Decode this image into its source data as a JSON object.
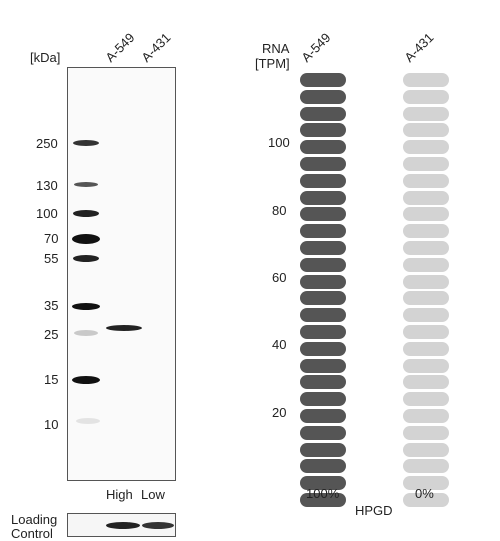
{
  "blot": {
    "unit_label": "[kDa]",
    "lane_headers": [
      "A-549",
      "A-431"
    ],
    "markers": [
      "250",
      "130",
      "100",
      "70",
      "55",
      "35",
      "25",
      "15",
      "10"
    ],
    "lane_levels": [
      "High",
      "Low"
    ],
    "loading_label_line1": "Loading",
    "loading_label_line2": "Control"
  },
  "rna": {
    "title_line1": "RNA",
    "title_line2": "[TPM]",
    "cell_lines": [
      "A-549",
      "A-431"
    ],
    "y_ticks": [
      "100",
      "80",
      "60",
      "40",
      "20"
    ],
    "gene": "HPGD",
    "percent": [
      "100%",
      "0%"
    ],
    "filled_fraction": [
      1.0,
      0.0
    ],
    "bar_count": 26,
    "colors": {
      "filled": "#555555",
      "empty": "#d3d3d3"
    }
  }
}
